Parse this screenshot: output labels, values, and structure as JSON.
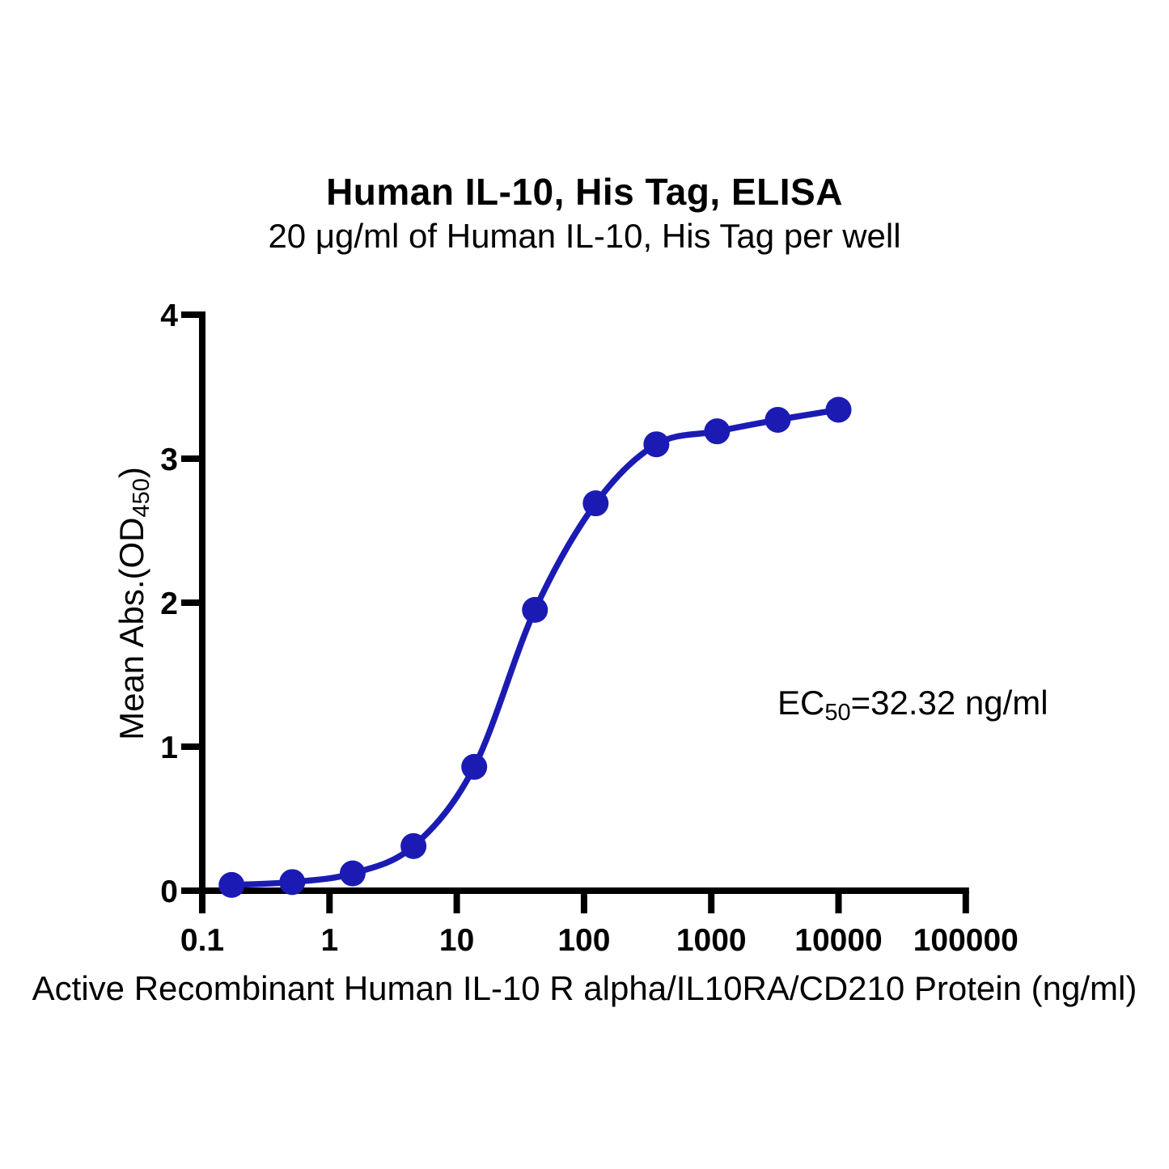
{
  "figure": {
    "title": "Human IL-10, His Tag, ELISA",
    "subtitle": "20 μg/ml of Human IL-10, His Tag per well"
  },
  "chart_data": {
    "type": "scatter",
    "line_through_points": true,
    "x_scale": "log10",
    "x": [
      0.17,
      0.51,
      1.52,
      4.57,
      13.72,
      41.15,
      123.46,
      370.37,
      1111.11,
      3333.33,
      10000
    ],
    "y": [
      0.04,
      0.06,
      0.12,
      0.31,
      0.86,
      1.95,
      2.69,
      3.1,
      3.19,
      3.27,
      3.34
    ],
    "xlim": [
      0.1,
      100000
    ],
    "ylim": [
      0,
      4
    ],
    "x_ticks": [
      0.1,
      1,
      10,
      100,
      1000,
      10000,
      100000
    ],
    "x_tick_labels": [
      "0.1",
      "1",
      "10",
      "100",
      "1000",
      "10000",
      "100000"
    ],
    "y_ticks": [
      0,
      1,
      2,
      3,
      4
    ],
    "y_tick_labels": [
      "0",
      "1",
      "2",
      "3",
      "4"
    ],
    "xlabel": "Active Recombinant Human IL-10 R alpha/IL10RA/CD210 Protein (ng/ml)",
    "ylabel_prefix": "Mean Abs.(OD",
    "ylabel_sub": "450",
    "ylabel_suffix": ")",
    "annotation": {
      "prefix": "EC",
      "sub": "50",
      "rest": "=32.32 ng/ml"
    },
    "ec50_ng_ml": 32.32,
    "series_color": "#1b1bb4",
    "axis_color": "#000000",
    "grid": false,
    "legend": "none"
  }
}
